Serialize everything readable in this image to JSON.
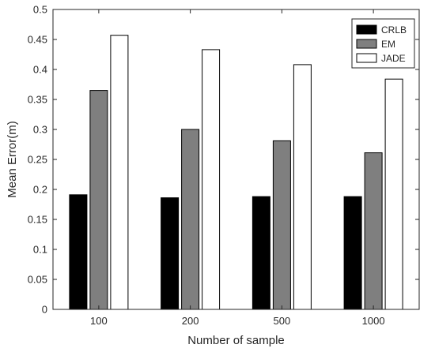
{
  "chart_data": {
    "type": "bar",
    "title": "",
    "xlabel": "Number of sample",
    "ylabel": "Mean Error(m)",
    "categories": [
      "100",
      "200",
      "500",
      "1000"
    ],
    "ylim": [
      0,
      0.5
    ],
    "yticks": [
      0,
      0.05,
      0.1,
      0.15,
      0.2,
      0.25,
      0.3,
      0.35,
      0.4,
      0.45,
      0.5
    ],
    "ytick_labels": [
      "0",
      "0.05",
      "0.1",
      "0.15",
      "0.2",
      "0.25",
      "0.3",
      "0.35",
      "0.4",
      "0.45",
      "0.5"
    ],
    "grid": false,
    "legend_position": "top-right",
    "series": [
      {
        "name": "CRLB",
        "color": "#000000",
        "values": [
          0.191,
          0.186,
          0.188,
          0.188
        ]
      },
      {
        "name": "EM",
        "color": "#7f7f7f",
        "values": [
          0.365,
          0.3,
          0.281,
          0.261
        ]
      },
      {
        "name": "JADE",
        "color": "#ffffff",
        "values": [
          0.457,
          0.433,
          0.408,
          0.384
        ]
      }
    ]
  }
}
